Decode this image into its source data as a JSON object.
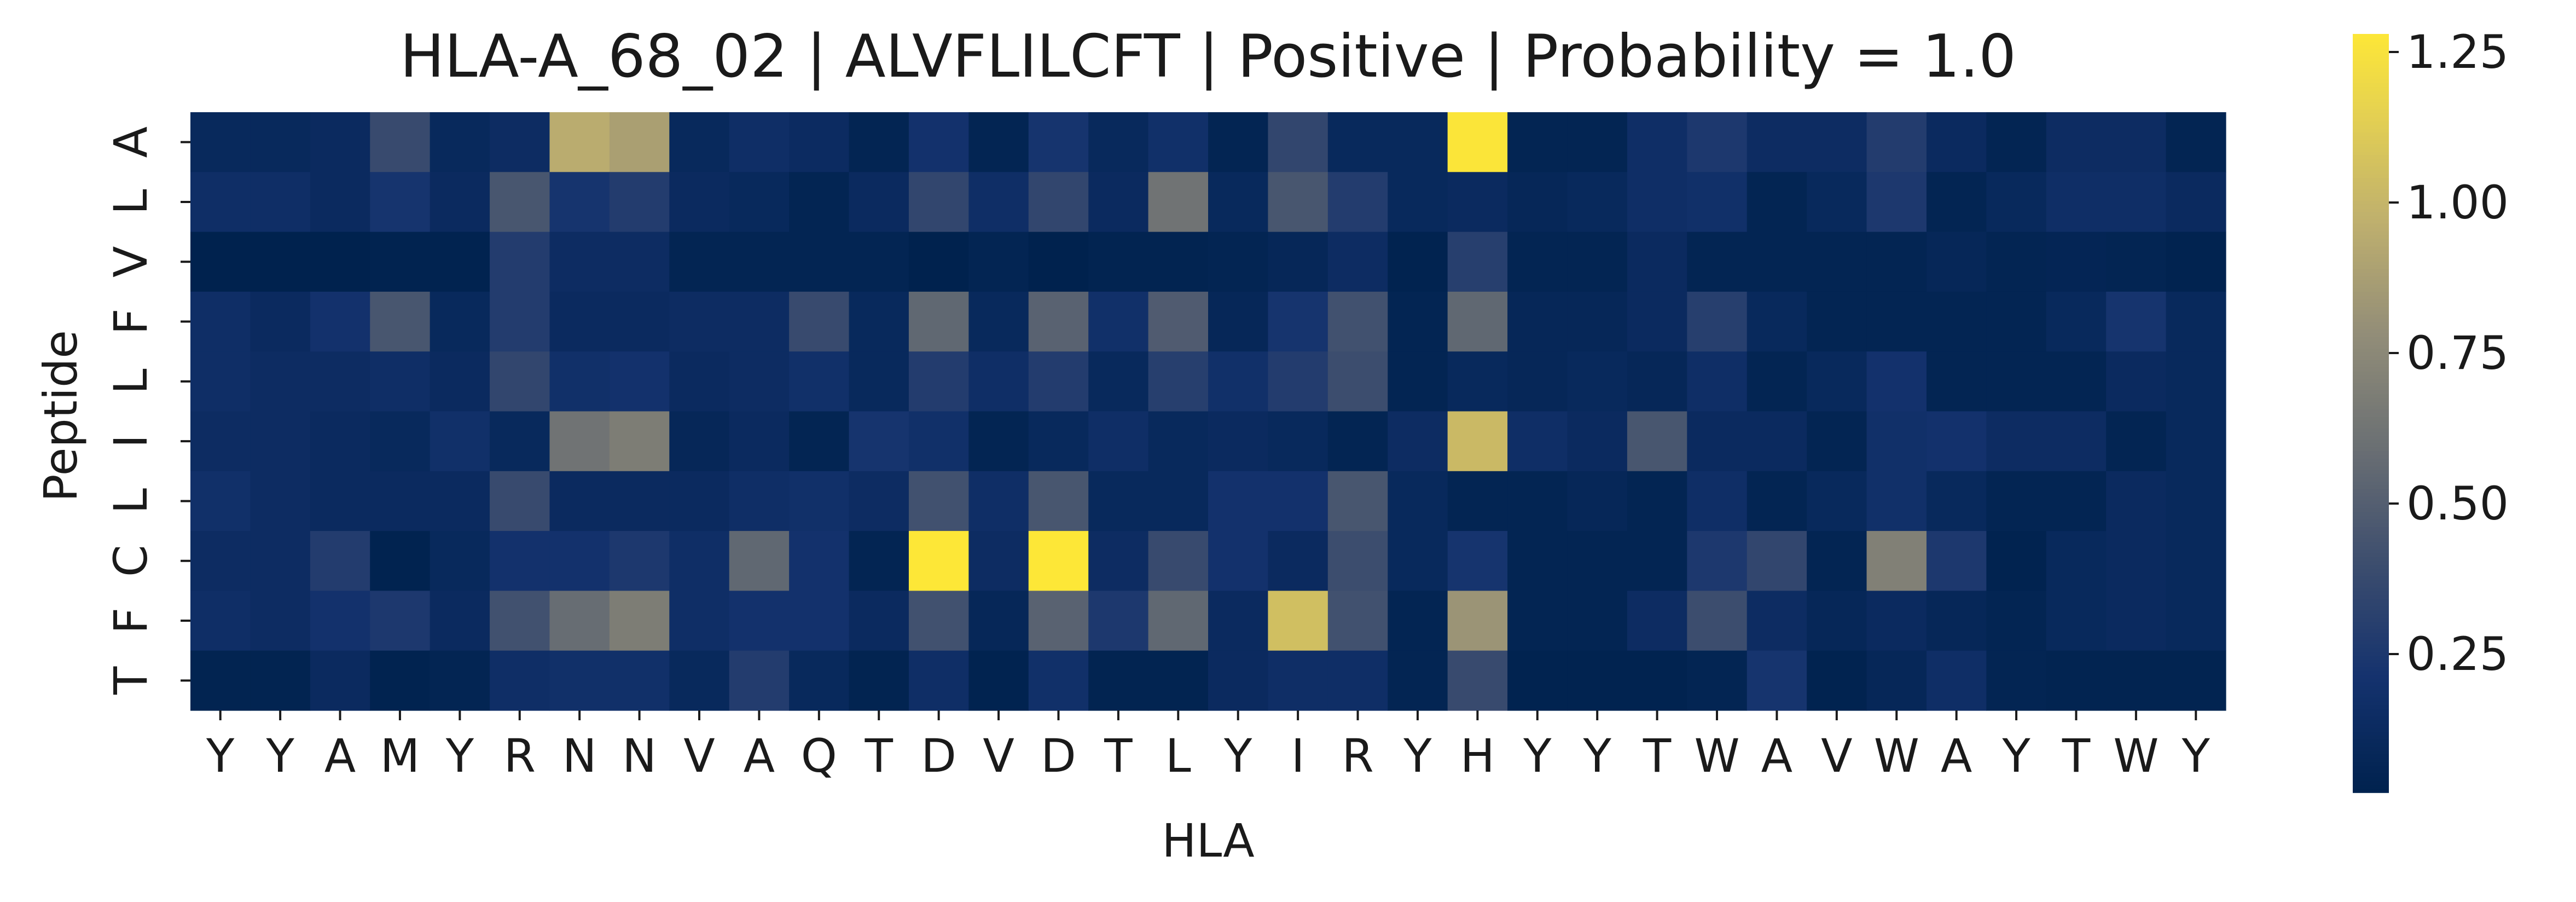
{
  "chart_data": {
    "type": "heatmap",
    "title": "HLA-A_68_02 | ALVFLILCFT | Positive | Probability = 1.0",
    "xlabel": "HLA",
    "ylabel": "Peptide",
    "x_categories": [
      "Y",
      "Y",
      "A",
      "M",
      "Y",
      "R",
      "N",
      "N",
      "V",
      "A",
      "Q",
      "T",
      "D",
      "V",
      "D",
      "T",
      "L",
      "Y",
      "I",
      "R",
      "Y",
      "H",
      "Y",
      "Y",
      "T",
      "W",
      "A",
      "V",
      "W",
      "A",
      "Y",
      "T",
      "W",
      "Y"
    ],
    "y_categories": [
      "A",
      "L",
      "V",
      "F",
      "L",
      "I",
      "L",
      "C",
      "F",
      "T"
    ],
    "values": [
      [
        0.1,
        0.1,
        0.12,
        0.38,
        0.1,
        0.14,
        0.95,
        0.88,
        0.1,
        0.16,
        0.13,
        0.05,
        0.2,
        0.05,
        0.22,
        0.1,
        0.18,
        0.05,
        0.35,
        0.1,
        0.1,
        1.27,
        0.05,
        0.05,
        0.16,
        0.25,
        0.14,
        0.14,
        0.28,
        0.12,
        0.05,
        0.14,
        0.14,
        0.05
      ],
      [
        0.16,
        0.16,
        0.12,
        0.22,
        0.12,
        0.45,
        0.22,
        0.28,
        0.12,
        0.1,
        0.05,
        0.12,
        0.35,
        0.16,
        0.35,
        0.12,
        0.62,
        0.1,
        0.45,
        0.28,
        0.1,
        0.12,
        0.08,
        0.1,
        0.16,
        0.18,
        0.05,
        0.1,
        0.25,
        0.05,
        0.1,
        0.16,
        0.16,
        0.12
      ],
      [
        0.02,
        0.02,
        0.02,
        0.03,
        0.03,
        0.28,
        0.14,
        0.14,
        0.05,
        0.05,
        0.05,
        0.05,
        0.02,
        0.05,
        0.02,
        0.04,
        0.04,
        0.05,
        0.08,
        0.14,
        0.03,
        0.3,
        0.05,
        0.05,
        0.12,
        0.05,
        0.05,
        0.05,
        0.05,
        0.08,
        0.05,
        0.06,
        0.05,
        0.03
      ],
      [
        0.16,
        0.12,
        0.2,
        0.45,
        0.1,
        0.28,
        0.12,
        0.12,
        0.14,
        0.14,
        0.38,
        0.1,
        0.55,
        0.1,
        0.52,
        0.18,
        0.48,
        0.08,
        0.22,
        0.42,
        0.05,
        0.55,
        0.08,
        0.08,
        0.12,
        0.3,
        0.1,
        0.05,
        0.05,
        0.05,
        0.05,
        0.1,
        0.22,
        0.1
      ],
      [
        0.16,
        0.14,
        0.14,
        0.16,
        0.12,
        0.35,
        0.18,
        0.2,
        0.12,
        0.14,
        0.18,
        0.1,
        0.28,
        0.16,
        0.28,
        0.1,
        0.3,
        0.18,
        0.28,
        0.4,
        0.05,
        0.1,
        0.08,
        0.1,
        0.08,
        0.16,
        0.05,
        0.1,
        0.2,
        0.05,
        0.05,
        0.05,
        0.12,
        0.1
      ],
      [
        0.14,
        0.14,
        0.12,
        0.1,
        0.18,
        0.1,
        0.62,
        0.68,
        0.08,
        0.12,
        0.05,
        0.22,
        0.18,
        0.05,
        0.1,
        0.16,
        0.1,
        0.12,
        0.1,
        0.05,
        0.14,
        1.02,
        0.16,
        0.12,
        0.45,
        0.12,
        0.12,
        0.05,
        0.18,
        0.2,
        0.14,
        0.14,
        0.05,
        0.1
      ],
      [
        0.18,
        0.14,
        0.12,
        0.12,
        0.12,
        0.38,
        0.12,
        0.12,
        0.12,
        0.16,
        0.18,
        0.14,
        0.42,
        0.16,
        0.45,
        0.1,
        0.1,
        0.2,
        0.2,
        0.45,
        0.1,
        0.05,
        0.05,
        0.08,
        0.05,
        0.16,
        0.05,
        0.1,
        0.18,
        0.1,
        0.05,
        0.05,
        0.12,
        0.1
      ],
      [
        0.14,
        0.14,
        0.28,
        0.03,
        0.1,
        0.2,
        0.2,
        0.25,
        0.16,
        0.55,
        0.2,
        0.05,
        1.28,
        0.14,
        1.28,
        0.14,
        0.38,
        0.2,
        0.12,
        0.4,
        0.1,
        0.22,
        0.05,
        0.05,
        0.05,
        0.25,
        0.35,
        0.05,
        0.7,
        0.25,
        0.03,
        0.1,
        0.12,
        0.1
      ],
      [
        0.16,
        0.14,
        0.2,
        0.25,
        0.12,
        0.42,
        0.58,
        0.68,
        0.16,
        0.2,
        0.2,
        0.12,
        0.42,
        0.08,
        0.52,
        0.25,
        0.55,
        0.12,
        1.05,
        0.42,
        0.05,
        0.82,
        0.05,
        0.05,
        0.14,
        0.4,
        0.14,
        0.08,
        0.12,
        0.08,
        0.05,
        0.1,
        0.12,
        0.1
      ],
      [
        0.04,
        0.04,
        0.12,
        0.03,
        0.05,
        0.16,
        0.18,
        0.18,
        0.1,
        0.28,
        0.1,
        0.04,
        0.16,
        0.03,
        0.18,
        0.04,
        0.04,
        0.12,
        0.16,
        0.16,
        0.05,
        0.38,
        0.03,
        0.03,
        0.03,
        0.05,
        0.22,
        0.03,
        0.08,
        0.16,
        0.05,
        0.04,
        0.04,
        0.04
      ]
    ],
    "vmin": 0.02,
    "vmax": 1.28,
    "colormap": "cividis",
    "colorbar": {
      "ticks": [
        0.25,
        0.5,
        0.75,
        1.0,
        1.25
      ],
      "tick_labels": [
        "0.25",
        "0.50",
        "0.75",
        "1.00",
        "1.25"
      ]
    },
    "grid": false
  }
}
